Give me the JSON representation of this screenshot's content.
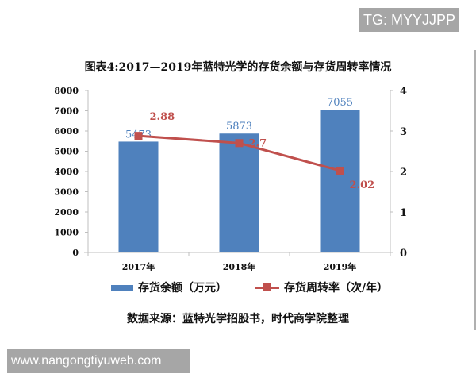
{
  "watermarks": {
    "top": "TG: MYYJJPP",
    "bottom": "www.nangongtiyuweb.com"
  },
  "colors": {
    "bar": "#4f81bd",
    "line": "#c0504d",
    "bar_label": "#4f81bd",
    "line_label": "#c0504d"
  },
  "chart_data": {
    "type": "bar+line",
    "title": "图表4:2017—2019年蓝特光学的存货余额与存货周转率情况",
    "categories": [
      "2017年",
      "2018年",
      "2019年"
    ],
    "series": [
      {
        "name": "存货余额（万元）",
        "type": "bar",
        "axis": "left",
        "values": [
          5473,
          5873,
          7055
        ],
        "labels": [
          "5473",
          "5873",
          "7055"
        ]
      },
      {
        "name": "存货周转率（次/年）",
        "type": "line",
        "axis": "right",
        "values": [
          2.88,
          2.7,
          2.02
        ],
        "labels": [
          "2.88",
          "2.7",
          "2.02"
        ]
      }
    ],
    "left_axis": {
      "ylim": [
        0,
        8000
      ],
      "ticks": [
        "0",
        "1000",
        "2000",
        "3000",
        "4000",
        "5000",
        "6000",
        "7000",
        "8000"
      ]
    },
    "right_axis": {
      "ylim": [
        0,
        4
      ],
      "ticks": [
        "0",
        "1",
        "2",
        "3",
        "4"
      ]
    },
    "grid": false,
    "legend_position": "bottom",
    "source": "数据来源：蓝特光学招股书，时代商学院整理"
  }
}
